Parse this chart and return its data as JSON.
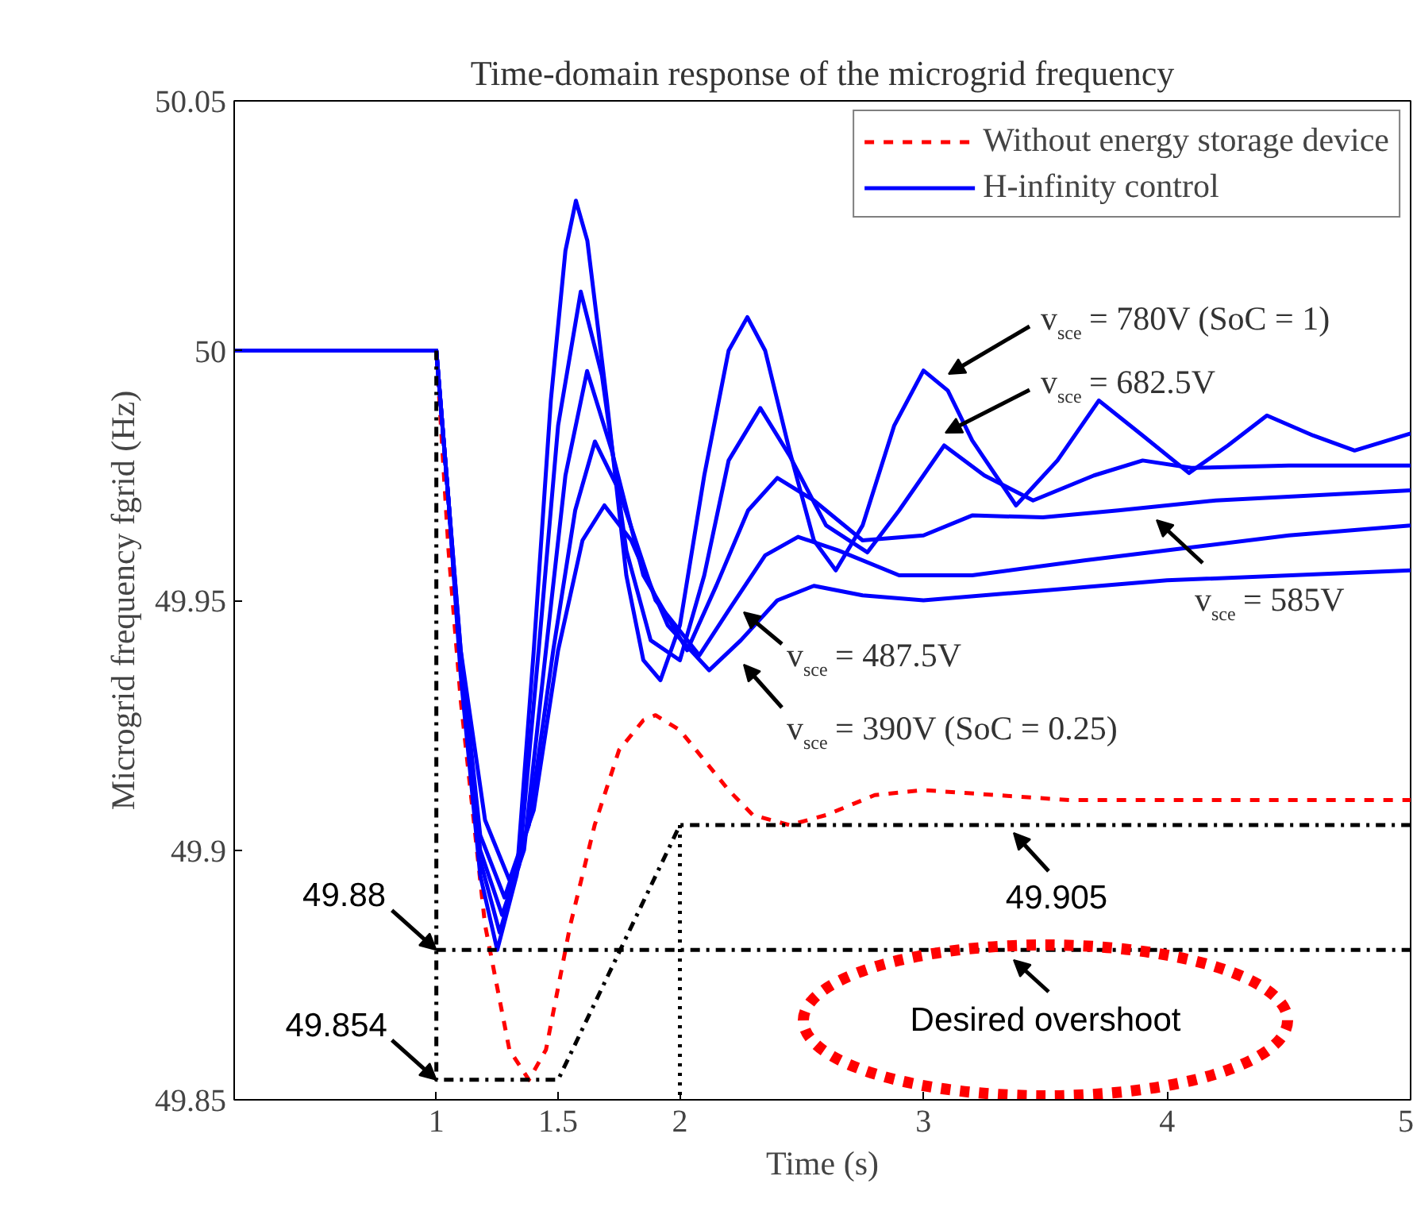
{
  "chart_data": {
    "type": "line",
    "title": "Time-domain response of the microgrid frequency",
    "xlabel": "Time (s)",
    "ylabel": "Microgrid frequency fgrid (Hz)",
    "xlim": [
      0.17,
      5
    ],
    "xticks": [
      1,
      1.5,
      2,
      3,
      4,
      5
    ],
    "ylim": [
      49.85,
      50.05
    ],
    "yticks": [
      49.85,
      49.9,
      49.95,
      50,
      50.05
    ],
    "grid": false,
    "legend": "top right",
    "series": [
      {
        "name": "Without energy storage device",
        "color": "#ff0000",
        "line_style": "dashed",
        "x": [
          0.17,
          1,
          1.05,
          1.1,
          1.2,
          1.3,
          1.38,
          1.45,
          1.55,
          1.65,
          1.75,
          1.85,
          1.9,
          2.0,
          2.1,
          2.2,
          2.3,
          2.45,
          2.6,
          2.8,
          3.0,
          3.3,
          3.6,
          4.0,
          5
        ],
        "values": [
          50,
          50,
          49.96,
          49.93,
          49.885,
          49.86,
          49.854,
          49.86,
          49.885,
          49.905,
          49.92,
          49.926,
          49.927,
          49.924,
          49.918,
          49.912,
          49.907,
          49.905,
          49.907,
          49.911,
          49.912,
          49.911,
          49.91,
          49.91,
          49.91
        ]
      },
      {
        "name": "H-infinity control",
        "color": "#0000ff",
        "line_style": "solid",
        "x": [
          0.17,
          1,
          1.05,
          1.1,
          1.18,
          1.25,
          1.33,
          1.4,
          1.47,
          1.53,
          1.573,
          1.62,
          1.7,
          1.78,
          1.85,
          1.92,
          2.0,
          2.1,
          2.2,
          2.277,
          2.35,
          2.45,
          2.55,
          2.64,
          2.75,
          2.88,
          3.0,
          3.1,
          3.2,
          3.38,
          3.55,
          3.72,
          3.9,
          4.09,
          4.25,
          4.41,
          4.6,
          4.77,
          5
        ],
        "values": [
          50,
          50,
          49.97,
          49.935,
          49.895,
          49.88,
          49.895,
          49.94,
          49.99,
          50.02,
          50.03,
          50.022,
          49.99,
          49.955,
          49.938,
          49.934,
          49.945,
          49.975,
          50.0,
          50.0067,
          50.0,
          49.98,
          49.962,
          49.956,
          49.965,
          49.985,
          49.996,
          49.992,
          49.982,
          49.969,
          49.978,
          49.99,
          49.983,
          49.9755,
          49.981,
          49.987,
          49.983,
          49.98,
          49.9834
        ]
      },
      {
        "color": "#0000ff",
        "line_style": "solid",
        "x": [
          0.17,
          1,
          1.05,
          1.1,
          1.18,
          1.26,
          1.34,
          1.42,
          1.5,
          1.593,
          1.68,
          1.78,
          1.88,
          2.0,
          2.1,
          2.2,
          2.33,
          2.45,
          2.6,
          2.77,
          2.9,
          3.085,
          3.25,
          3.45,
          3.7,
          3.9,
          4.1,
          4.5,
          5
        ],
        "values": [
          50,
          50,
          49.97,
          49.937,
          49.898,
          49.8835,
          49.897,
          49.94,
          49.985,
          50.0118,
          49.995,
          49.96,
          49.942,
          49.938,
          49.955,
          49.978,
          49.9885,
          49.979,
          49.965,
          49.9596,
          49.968,
          49.981,
          49.975,
          49.97,
          49.975,
          49.978,
          49.9765,
          49.977,
          49.977
        ]
      },
      {
        "color": "#0000ff",
        "line_style": "solid",
        "x": [
          0.17,
          1,
          1.05,
          1.1,
          1.18,
          1.27,
          1.36,
          1.45,
          1.53,
          1.619,
          1.72,
          1.85,
          2.03,
          2.15,
          2.28,
          2.4,
          2.55,
          2.75,
          3.0,
          3.2,
          3.49,
          3.8,
          4.2,
          5
        ],
        "values": [
          50,
          50,
          49.97,
          49.938,
          49.9,
          49.887,
          49.9,
          49.94,
          49.975,
          49.9959,
          49.98,
          49.955,
          49.94,
          49.953,
          49.968,
          49.9745,
          49.97,
          49.962,
          49.963,
          49.967,
          49.9666,
          49.968,
          49.97,
          49.972
        ]
      },
      {
        "color": "#0000ff",
        "line_style": "solid",
        "x": [
          0.17,
          1,
          1.05,
          1.1,
          1.18,
          1.28,
          1.38,
          1.48,
          1.57,
          1.651,
          1.75,
          1.9,
          2.08,
          2.2,
          2.35,
          2.485,
          2.65,
          2.9,
          3.2,
          3.66,
          4.0,
          4.5,
          5
        ],
        "values": [
          50,
          50,
          49.97,
          49.94,
          49.903,
          49.8905,
          49.905,
          49.94,
          49.968,
          49.9818,
          49.972,
          49.95,
          49.939,
          49.948,
          49.959,
          49.9627,
          49.96,
          49.955,
          49.955,
          49.958,
          49.96,
          49.963,
          49.965
        ]
      },
      {
        "color": "#0000ff",
        "line_style": "solid",
        "x": [
          0.17,
          1,
          1.05,
          1.1,
          1.2,
          1.3,
          1.4,
          1.5,
          1.6,
          1.69,
          1.8,
          1.95,
          2.12,
          2.25,
          2.4,
          2.55,
          2.75,
          3.0,
          3.5,
          4.0,
          5
        ],
        "values": [
          50,
          50,
          49.97,
          49.94,
          49.906,
          49.894,
          49.908,
          49.94,
          49.962,
          49.969,
          49.962,
          49.945,
          49.936,
          49.942,
          49.95,
          49.9529,
          49.951,
          49.95,
          49.952,
          49.954,
          49.956
        ]
      },
      {
        "color": "#000000",
        "line_style": "dashdot",
        "x": [
          1,
          1,
          1.5,
          2,
          5
        ],
        "values": [
          50,
          49.854,
          49.854,
          49.905,
          49.905
        ]
      },
      {
        "color": "#000000",
        "line_style": "dashdot",
        "x": [
          1,
          5
        ],
        "values": [
          49.88,
          49.88
        ]
      },
      {
        "color": "#000000",
        "line_style": "dotted",
        "x": [
          2,
          2
        ],
        "values": [
          49.905,
          49.85
        ]
      }
    ],
    "annotations": [
      "v$_{sce}$ = 780V (SoC = 1)",
      "v$_{sce}$ = 682.5V",
      "v$_{sce}$ = 585V",
      "v$_{sce}$ = 487.5V",
      "v$_{sce}$ = 390V (SoC = 0.25)",
      {
        "text": "49.88",
        "x": 1,
        "y": 49.88
      },
      {
        "text": "49.854",
        "x": 1,
        "y": 49.854
      },
      "49.905",
      "Desired overshoot"
    ]
  }
}
